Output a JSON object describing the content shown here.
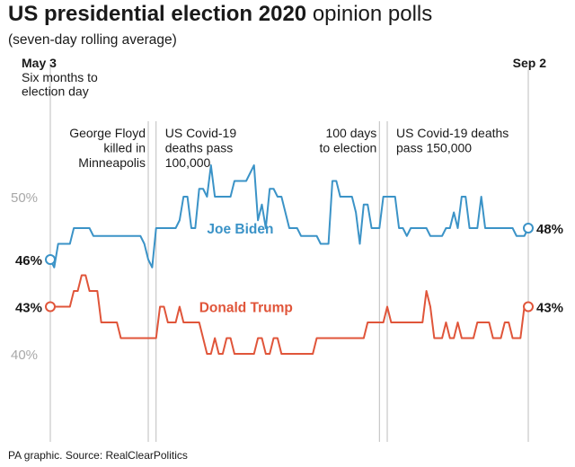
{
  "title_bold": "US presidential election 2020",
  "title_rest": "opinion polls",
  "subtitle": "(seven-day rolling average)",
  "source": "PA graphic. Source: RealClearPolitics",
  "colors": {
    "biden": "#3b93c7",
    "trump": "#e0553a",
    "text": "#1a1a1a",
    "gridlabel": "#a8a8a8",
    "vline": "#bdbdbd"
  },
  "chart_data": {
    "type": "line",
    "title": "US presidential election 2020 opinion polls",
    "subtitle": "(seven-day rolling average)",
    "x_start_label": "May 3",
    "x_start_sublabel": [
      "Six months to",
      "election day"
    ],
    "x_end_label": "Sep 2",
    "x_range_days": [
      0,
      122
    ],
    "ylim": [
      36,
      54
    ],
    "yticks": [
      {
        "value": 50,
        "label": "50%"
      },
      {
        "value": 40,
        "label": "40%"
      }
    ],
    "series": [
      {
        "name": "Joe Biden",
        "color": "#3b93c7",
        "start_label": "46%",
        "end_label": "48%",
        "points": [
          [
            0,
            46
          ],
          [
            1,
            45.5
          ],
          [
            2,
            47
          ],
          [
            3,
            47
          ],
          [
            4,
            47
          ],
          [
            5,
            47
          ],
          [
            6,
            48
          ],
          [
            7,
            48
          ],
          [
            8,
            48
          ],
          [
            9,
            48
          ],
          [
            10,
            48
          ],
          [
            11,
            47.5
          ],
          [
            12,
            47.5
          ],
          [
            13,
            47.5
          ],
          [
            14,
            47.5
          ],
          [
            15,
            47.5
          ],
          [
            16,
            47.5
          ],
          [
            17,
            47.5
          ],
          [
            18,
            47.5
          ],
          [
            19,
            47.5
          ],
          [
            20,
            47.5
          ],
          [
            21,
            47.5
          ],
          [
            22,
            47.5
          ],
          [
            23,
            47.5
          ],
          [
            24,
            47
          ],
          [
            25,
            46
          ],
          [
            26,
            45.5
          ],
          [
            27,
            48
          ],
          [
            28,
            48
          ],
          [
            29,
            48
          ],
          [
            30,
            48
          ],
          [
            31,
            48
          ],
          [
            32,
            48
          ],
          [
            33,
            48.5
          ],
          [
            34,
            50
          ],
          [
            35,
            50
          ],
          [
            36,
            48
          ],
          [
            37,
            48
          ],
          [
            38,
            50.5
          ],
          [
            39,
            50.5
          ],
          [
            40,
            50
          ],
          [
            41,
            52
          ],
          [
            42,
            50
          ],
          [
            43,
            50
          ],
          [
            44,
            50
          ],
          [
            45,
            50
          ],
          [
            46,
            50
          ],
          [
            47,
            51
          ],
          [
            48,
            51
          ],
          [
            49,
            51
          ],
          [
            50,
            51
          ],
          [
            51,
            51.5
          ],
          [
            52,
            52
          ],
          [
            53,
            48.5
          ],
          [
            54,
            49.5
          ],
          [
            55,
            48
          ],
          [
            56,
            50.5
          ],
          [
            57,
            50.5
          ],
          [
            58,
            50
          ],
          [
            59,
            50
          ],
          [
            60,
            49
          ],
          [
            61,
            48
          ],
          [
            62,
            48
          ],
          [
            63,
            48
          ],
          [
            64,
            47.5
          ],
          [
            65,
            47.5
          ],
          [
            66,
            47.5
          ],
          [
            67,
            47.5
          ],
          [
            68,
            47.5
          ],
          [
            69,
            47
          ],
          [
            70,
            47
          ],
          [
            71,
            47
          ],
          [
            72,
            51
          ],
          [
            73,
            51
          ],
          [
            74,
            50
          ],
          [
            75,
            50
          ],
          [
            76,
            50
          ],
          [
            77,
            50
          ],
          [
            78,
            49
          ],
          [
            79,
            47
          ],
          [
            80,
            49.5
          ],
          [
            81,
            49.5
          ],
          [
            82,
            48
          ],
          [
            83,
            48
          ],
          [
            84,
            48
          ],
          [
            85,
            50
          ],
          [
            86,
            50
          ],
          [
            87,
            50
          ],
          [
            88,
            50
          ],
          [
            89,
            48
          ],
          [
            90,
            48
          ],
          [
            91,
            47.5
          ],
          [
            92,
            48
          ],
          [
            93,
            48
          ],
          [
            94,
            48
          ],
          [
            95,
            48
          ],
          [
            96,
            48
          ],
          [
            97,
            47.5
          ],
          [
            98,
            47.5
          ],
          [
            99,
            47.5
          ],
          [
            100,
            47.5
          ],
          [
            101,
            48
          ],
          [
            102,
            48
          ],
          [
            103,
            49
          ],
          [
            104,
            48
          ],
          [
            105,
            50
          ],
          [
            106,
            50
          ],
          [
            107,
            48
          ],
          [
            108,
            48
          ],
          [
            109,
            48
          ],
          [
            110,
            50
          ],
          [
            111,
            48
          ],
          [
            112,
            48
          ],
          [
            113,
            48
          ],
          [
            114,
            48
          ],
          [
            115,
            48
          ],
          [
            116,
            48
          ],
          [
            117,
            48
          ],
          [
            118,
            48
          ],
          [
            119,
            47.5
          ],
          [
            120,
            47.5
          ],
          [
            121,
            47.5
          ],
          [
            122,
            48
          ]
        ]
      },
      {
        "name": "Donald Trump",
        "color": "#e0553a",
        "start_label": "43%",
        "end_label": "43%",
        "points": [
          [
            0,
            43
          ],
          [
            1,
            43
          ],
          [
            2,
            43
          ],
          [
            3,
            43
          ],
          [
            4,
            43
          ],
          [
            5,
            43
          ],
          [
            6,
            44
          ],
          [
            7,
            44
          ],
          [
            8,
            45
          ],
          [
            9,
            45
          ],
          [
            10,
            44
          ],
          [
            11,
            44
          ],
          [
            12,
            44
          ],
          [
            13,
            42
          ],
          [
            14,
            42
          ],
          [
            15,
            42
          ],
          [
            16,
            42
          ],
          [
            17,
            42
          ],
          [
            18,
            41
          ],
          [
            19,
            41
          ],
          [
            20,
            41
          ],
          [
            21,
            41
          ],
          [
            22,
            41
          ],
          [
            23,
            41
          ],
          [
            24,
            41
          ],
          [
            25,
            41
          ],
          [
            26,
            41
          ],
          [
            27,
            41
          ],
          [
            28,
            43
          ],
          [
            29,
            43
          ],
          [
            30,
            42
          ],
          [
            31,
            42
          ],
          [
            32,
            42
          ],
          [
            33,
            43
          ],
          [
            34,
            42
          ],
          [
            35,
            42
          ],
          [
            36,
            42
          ],
          [
            37,
            42
          ],
          [
            38,
            42
          ],
          [
            39,
            41
          ],
          [
            40,
            40
          ],
          [
            41,
            40
          ],
          [
            42,
            41
          ],
          [
            43,
            40
          ],
          [
            44,
            40
          ],
          [
            45,
            41
          ],
          [
            46,
            41
          ],
          [
            47,
            40
          ],
          [
            48,
            40
          ],
          [
            49,
            40
          ],
          [
            50,
            40
          ],
          [
            51,
            40
          ],
          [
            52,
            40
          ],
          [
            53,
            41
          ],
          [
            54,
            41
          ],
          [
            55,
            40
          ],
          [
            56,
            40
          ],
          [
            57,
            41
          ],
          [
            58,
            41
          ],
          [
            59,
            40
          ],
          [
            60,
            40
          ],
          [
            61,
            40
          ],
          [
            62,
            40
          ],
          [
            63,
            40
          ],
          [
            64,
            40
          ],
          [
            65,
            40
          ],
          [
            66,
            40
          ],
          [
            67,
            40
          ],
          [
            68,
            41
          ],
          [
            69,
            41
          ],
          [
            70,
            41
          ],
          [
            71,
            41
          ],
          [
            72,
            41
          ],
          [
            73,
            41
          ],
          [
            74,
            41
          ],
          [
            75,
            41
          ],
          [
            76,
            41
          ],
          [
            77,
            41
          ],
          [
            78,
            41
          ],
          [
            79,
            41
          ],
          [
            80,
            41
          ],
          [
            81,
            42
          ],
          [
            82,
            42
          ],
          [
            83,
            42
          ],
          [
            84,
            42
          ],
          [
            85,
            42
          ],
          [
            86,
            43
          ],
          [
            87,
            42
          ],
          [
            88,
            42
          ],
          [
            89,
            42
          ],
          [
            90,
            42
          ],
          [
            91,
            42
          ],
          [
            92,
            42
          ],
          [
            93,
            42
          ],
          [
            94,
            42
          ],
          [
            95,
            42
          ],
          [
            96,
            44
          ],
          [
            97,
            43
          ],
          [
            98,
            41
          ],
          [
            99,
            41
          ],
          [
            100,
            41
          ],
          [
            101,
            42
          ],
          [
            102,
            41
          ],
          [
            103,
            41
          ],
          [
            104,
            42
          ],
          [
            105,
            41
          ],
          [
            106,
            41
          ],
          [
            107,
            41
          ],
          [
            108,
            41
          ],
          [
            109,
            42
          ],
          [
            110,
            42
          ],
          [
            111,
            42
          ],
          [
            112,
            42
          ],
          [
            113,
            41
          ],
          [
            114,
            41
          ],
          [
            115,
            41
          ],
          [
            116,
            42
          ],
          [
            117,
            42
          ],
          [
            118,
            41
          ],
          [
            119,
            41
          ],
          [
            120,
            41
          ],
          [
            121,
            43
          ],
          [
            122,
            43
          ]
        ]
      }
    ],
    "annotations": [
      {
        "day": 25,
        "lines": [
          "George Floyd",
          "killed in",
          "Minneapolis"
        ],
        "align": "right"
      },
      {
        "day": 27,
        "lines": [
          "US Covid-19",
          "deaths pass",
          "100,000"
        ],
        "align": "left"
      },
      {
        "day": 84,
        "lines": [
          "100 days",
          "to election"
        ],
        "align": "right"
      },
      {
        "day": 86,
        "lines": [
          "US Covid-19 deaths",
          "pass 150,000"
        ],
        "align": "left"
      }
    ]
  }
}
